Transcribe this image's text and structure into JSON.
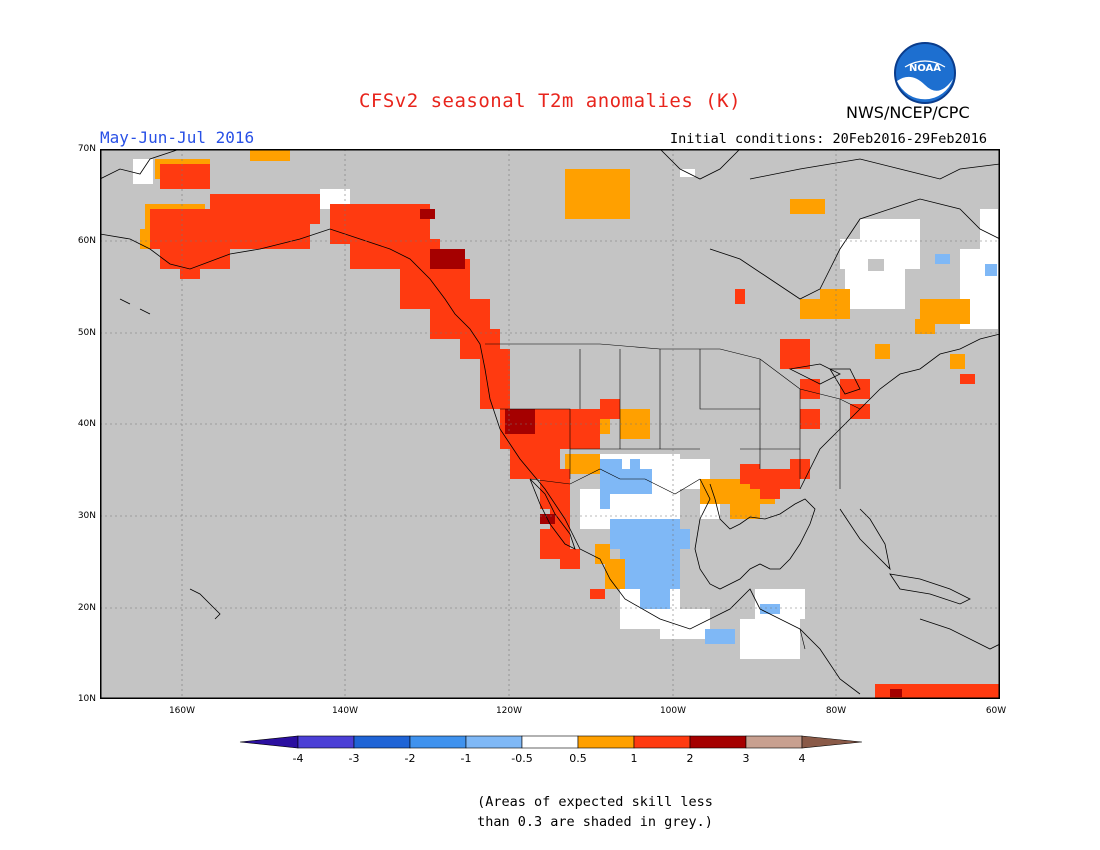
{
  "title": "CFSv2 seasonal T2m anomalies (K)",
  "period": "May-Jun-Jul 2016",
  "agency": "NWS/NCEP/CPC",
  "logo_text": "NOAA",
  "initial_conditions": "Initial conditions: 20Feb2016-29Feb2016",
  "lat_labels": [
    "70N",
    "60N",
    "50N",
    "40N",
    "30N",
    "20N",
    "10N"
  ],
  "lon_labels": [
    "160W",
    "140W",
    "120W",
    "100W",
    "80W",
    "60W"
  ],
  "colorbar": {
    "labels": [
      "-4",
      "-3",
      "-2",
      "-1",
      "-0.5",
      "0.5",
      "1",
      "2",
      "3",
      "4"
    ],
    "colors": [
      "#2b0fa0",
      "#4b3fd6",
      "#1f64d6",
      "#3f92ee",
      "#7fb8f6",
      "#ffffff",
      "#ffa000",
      "#ff3a10",
      "#a50000",
      "#c8a090",
      "#8a5a48"
    ]
  },
  "colors": {
    "grey_mask": "#c4c4c4",
    "water": "#ffffff",
    "coast": "#000000"
  },
  "note": [
    "(Areas of expected skill less",
    "than 0.3 are shaded in grey.)"
  ]
}
